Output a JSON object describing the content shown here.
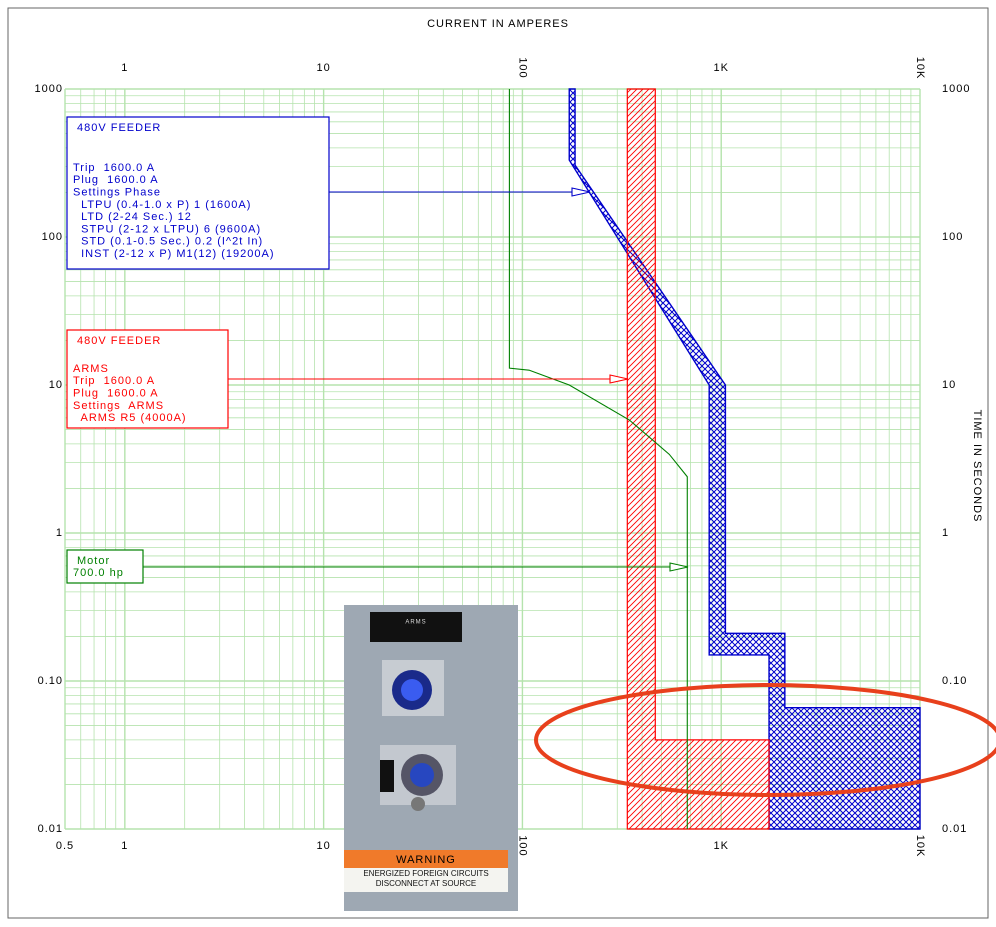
{
  "chart_data": {
    "type": "tcc",
    "title": "CURRENT IN AMPERES",
    "y_axis_label": "TIME IN SECONDS",
    "xscale": "log",
    "yscale": "log",
    "grid": true,
    "xlim": [
      0.5,
      10000
    ],
    "ylim": [
      0.01,
      1000
    ],
    "xticks": [
      0.5,
      1,
      10,
      100,
      {
        "value": 1000,
        "label": "1K"
      },
      {
        "value": 10000,
        "label": "10K"
      }
    ],
    "xticks_top": [
      1,
      10,
      100,
      {
        "value": 1000,
        "label": "1K"
      },
      {
        "value": 10000,
        "label": "10K"
      }
    ],
    "yticks": [
      {
        "value": 0.01,
        "label": "0.01"
      },
      {
        "value": 0.1,
        "label": "0.10"
      },
      1,
      10,
      100,
      1000
    ],
    "grid_color": "#b5e3ad",
    "series": [
      {
        "name": "480V FEEDER",
        "color": "#0000cc",
        "kind": "crosshatch",
        "notes": [
          "Trip  1600.0 A",
          "Plug  1600.0 A",
          "Settings Phase",
          "  LTPU (0.4-1.0 x P) 1 (1600A)",
          "  LTD (2-24 Sec.) 12",
          "  STPU (2-12 x LTPU) 6 (9600A)",
          "  STD (0.1-0.5 Sec.) 0.2 (I^2t In)",
          "  INST (2-12 x P) M1(12) (19200A)"
        ],
        "x": [
          172,
          172,
          870,
          870,
          1740,
          1740,
          10000,
          10000,
          2090,
          2090,
          1050,
          1050,
          184,
          184
        ],
        "values": [
          1000,
          331,
          10,
          0.15,
          0.15,
          0.01,
          0.01,
          0.066,
          0.066,
          0.21,
          0.21,
          10,
          306,
          1000
        ]
      },
      {
        "name": "480V FEEDER",
        "color": "#ff0000",
        "kind": "hatch",
        "notes": [
          "ARMS",
          "Trip  1600.0 A",
          "Plug  1600.0 A",
          "Settings  ARMS",
          "  ARMS R5 (4000A)"
        ],
        "x": [
          337,
          337,
          1740,
          1740,
          466,
          466
        ],
        "values": [
          1000,
          0.01,
          0.01,
          0.04,
          0.04,
          1000
        ]
      },
      {
        "name": "Motor",
        "color": "#008000",
        "kind": "line",
        "notes": [
          "700.0 hp"
        ],
        "x": [
          86,
          86,
          108,
          172,
          345,
          548,
          675,
          675
        ],
        "values": [
          1000,
          13,
          12.6,
          10,
          5.8,
          3.4,
          2.4,
          0.01
        ]
      }
    ],
    "photo": {
      "plate": "ARMS",
      "warning": "WARNING",
      "warning_text": [
        "ENERGIZED FOREIGN CIRCUITS",
        "DISCONNECT AT SOURCE"
      ]
    }
  }
}
